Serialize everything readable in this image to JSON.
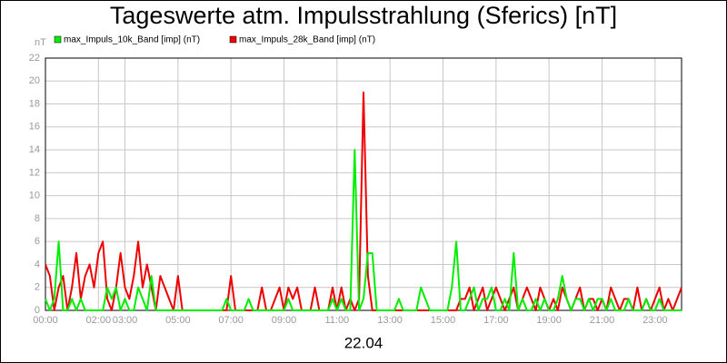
{
  "chart_data": {
    "type": "line",
    "title": "Tageswerte atm. Impulsstrahlung (Sferics) [nT]",
    "xlabel": "22.04",
    "ylabel": "nT",
    "x": [
      0,
      10,
      20,
      30,
      40,
      50,
      60,
      70,
      80,
      90,
      100,
      110,
      120,
      130,
      140,
      150,
      160,
      170,
      180,
      190,
      200,
      210,
      220,
      230,
      240,
      250,
      260,
      270,
      280,
      290,
      300,
      310,
      320,
      330,
      340,
      350,
      360,
      370,
      380,
      390,
      400,
      410,
      420,
      430,
      440,
      450,
      460,
      470,
      480,
      490,
      500,
      510,
      520,
      530,
      540,
      550,
      560,
      570,
      580,
      590,
      600,
      610,
      620,
      630,
      640,
      650,
      660,
      670,
      680,
      690,
      700,
      710,
      720,
      730,
      740,
      750,
      760,
      770,
      780,
      790,
      800,
      810,
      820,
      830,
      840,
      850,
      860,
      870,
      880,
      890,
      900,
      910,
      920,
      930,
      940,
      950,
      960,
      970,
      980,
      990,
      1000,
      1010,
      1020,
      1030,
      1040,
      1050,
      1060,
      1070,
      1080,
      1090,
      1100,
      1110,
      1120,
      1130,
      1140,
      1150,
      1160,
      1170,
      1180,
      1190,
      1200,
      1210,
      1220,
      1230,
      1240,
      1250,
      1260,
      1270,
      1280,
      1290,
      1300,
      1310,
      1320,
      1330,
      1340,
      1350,
      1360,
      1370,
      1380,
      1390,
      1400,
      1410,
      1420,
      1430,
      1440
    ],
    "series": [
      {
        "name": "max_Impuls_10k_Band [imp] (nT)",
        "color": "#00ee00",
        "values": [
          1,
          0,
          1,
          6,
          0,
          0,
          1,
          0,
          1,
          0,
          0,
          0,
          0,
          0,
          2,
          1,
          2,
          0,
          1,
          0,
          0,
          2,
          1,
          0,
          3,
          0,
          0,
          0,
          0,
          0,
          0,
          0,
          0,
          0,
          0,
          0,
          0,
          0,
          0,
          0,
          0,
          1,
          0,
          0,
          0,
          0,
          1,
          0,
          0,
          0,
          0,
          0,
          0,
          0,
          0,
          1,
          0,
          0,
          0,
          0,
          0,
          0,
          0,
          0,
          0,
          1,
          0,
          1,
          0,
          0,
          14,
          0,
          1,
          5,
          5,
          0,
          0,
          0,
          0,
          0,
          1,
          0,
          0,
          0,
          0,
          2,
          1,
          0,
          0,
          0,
          0,
          0,
          2,
          6,
          0,
          0,
          1,
          2,
          0,
          1,
          1,
          2,
          0,
          0,
          1,
          0,
          5,
          0,
          1,
          0,
          0,
          1,
          0,
          1,
          0,
          0,
          1,
          3,
          1,
          0,
          1,
          1,
          0,
          1,
          0,
          1,
          1,
          0,
          1,
          0,
          0,
          0,
          1,
          0,
          0,
          0,
          1,
          0,
          0,
          1,
          0,
          0,
          0,
          0,
          0
        ]
      },
      {
        "name": "max_Impuls_28k_Band [imp] (nT)",
        "color": "#ee0000",
        "values": [
          4,
          3,
          0,
          2,
          3,
          0,
          2,
          5,
          1,
          3,
          4,
          2,
          5,
          6,
          1,
          0,
          2,
          5,
          2,
          1,
          3,
          6,
          2,
          4,
          2,
          0,
          3,
          2,
          1,
          0,
          3,
          0,
          0,
          0,
          0,
          0,
          0,
          0,
          0,
          0,
          0,
          0,
          3,
          0,
          0,
          0,
          0,
          0,
          0,
          2,
          0,
          0,
          1,
          2,
          0,
          2,
          1,
          2,
          0,
          0,
          0,
          2,
          0,
          0,
          0,
          2,
          0,
          2,
          0,
          1,
          0,
          1,
          19,
          3,
          0,
          0,
          0,
          0,
          0,
          0,
          0,
          0,
          0,
          0,
          0,
          0,
          0,
          0,
          0,
          0,
          0,
          0,
          0,
          0,
          1,
          1,
          2,
          0,
          1,
          2,
          0,
          1,
          2,
          1,
          0,
          1,
          2,
          0,
          1,
          2,
          1,
          0,
          2,
          1,
          0,
          1,
          0,
          2,
          1,
          0,
          1,
          2,
          0,
          1,
          1,
          0,
          1,
          0,
          2,
          1,
          0,
          1,
          1,
          0,
          2,
          0,
          1,
          0,
          1,
          2,
          0,
          1,
          0,
          1,
          2
        ]
      }
    ],
    "xlim": [
      0,
      1440
    ],
    "xticks": [
      {
        "value": 0,
        "label": "00:00"
      },
      {
        "value": 120,
        "label": "02:00"
      },
      {
        "value": 180,
        "label": "03:00"
      },
      {
        "value": 300,
        "label": "05:00"
      },
      {
        "value": 420,
        "label": "07:00"
      },
      {
        "value": 540,
        "label": "09:00"
      },
      {
        "value": 660,
        "label": "11:00"
      },
      {
        "value": 780,
        "label": "13:00"
      },
      {
        "value": 900,
        "label": "15:00"
      },
      {
        "value": 1020,
        "label": "17:00"
      },
      {
        "value": 1140,
        "label": "19:00"
      },
      {
        "value": 1260,
        "label": "21:00"
      },
      {
        "value": 1380,
        "label": "23:00"
      }
    ],
    "ylim": [
      0,
      22
    ],
    "yticks": [
      0,
      2,
      4,
      6,
      8,
      10,
      12,
      14,
      16,
      18,
      20,
      22
    ],
    "grid": true
  }
}
